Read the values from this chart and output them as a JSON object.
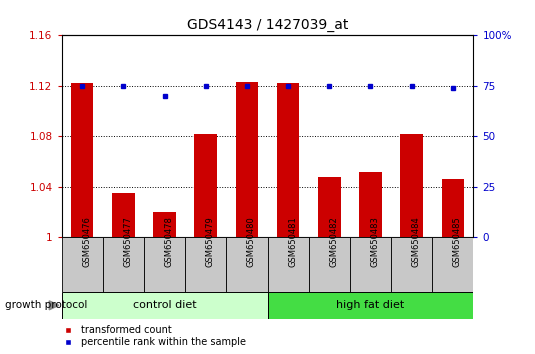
{
  "title": "GDS4143 / 1427039_at",
  "samples": [
    "GSM650476",
    "GSM650477",
    "GSM650478",
    "GSM650479",
    "GSM650480",
    "GSM650481",
    "GSM650482",
    "GSM650483",
    "GSM650484",
    "GSM650485"
  ],
  "transformed_count": [
    1.122,
    1.035,
    1.02,
    1.082,
    1.123,
    1.122,
    1.048,
    1.052,
    1.082,
    1.046
  ],
  "percentile_rank": [
    75,
    75,
    70,
    75,
    75,
    75,
    75,
    75,
    75,
    74
  ],
  "groups": [
    {
      "label": "control diet",
      "start": 0,
      "end": 5,
      "color": "#CCFFCC"
    },
    {
      "label": "high fat diet",
      "start": 5,
      "end": 10,
      "color": "#44DD44"
    }
  ],
  "group_protocol_label": "growth protocol",
  "bar_color": "#CC0000",
  "dot_color": "#0000CC",
  "ylim_left": [
    1.0,
    1.16
  ],
  "ylim_right": [
    0,
    100
  ],
  "yticks_left": [
    1.0,
    1.04,
    1.08,
    1.12,
    1.16
  ],
  "yticks_right": [
    0,
    25,
    50,
    75,
    100
  ],
  "ytick_labels_left": [
    "1",
    "1.04",
    "1.08",
    "1.12",
    "1.16"
  ],
  "ytick_labels_right": [
    "0",
    "25",
    "50",
    "75",
    "100%"
  ],
  "legend_items": [
    {
      "label": "transformed count",
      "color": "#CC0000"
    },
    {
      "label": "percentile rank within the sample",
      "color": "#0000CC"
    }
  ],
  "sample_box_color": "#C8C8C8",
  "bar_width": 0.55
}
